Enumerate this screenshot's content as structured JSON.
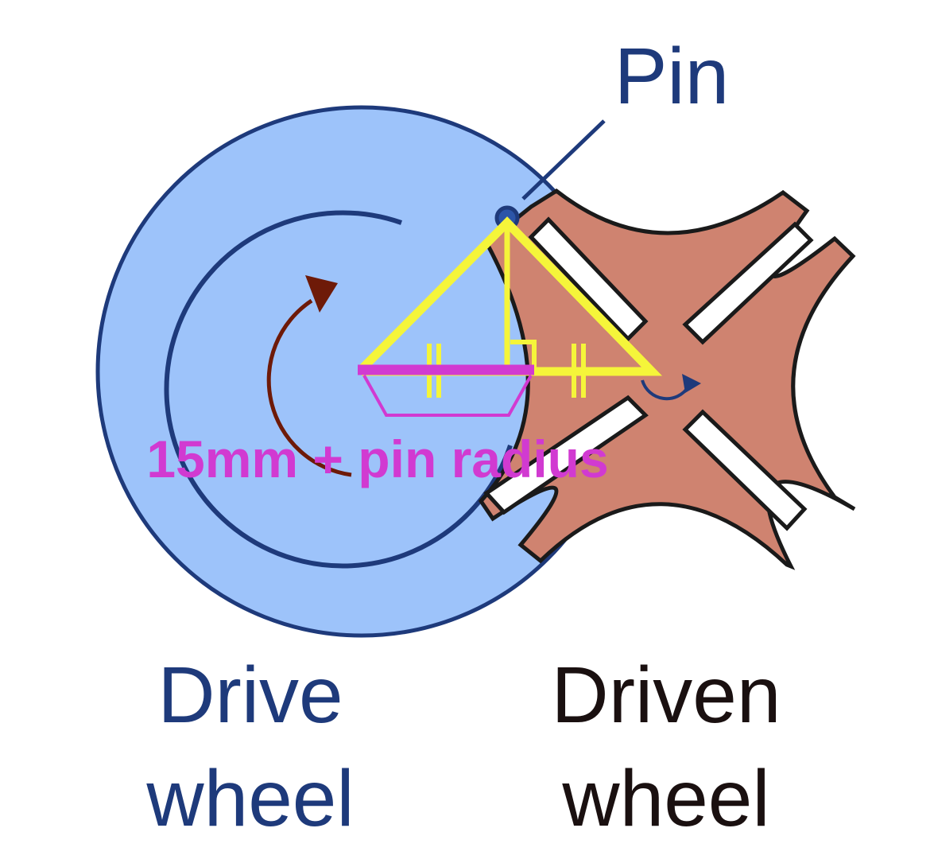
{
  "labels": {
    "pin": "Pin",
    "dimension": "15mm + pin radius",
    "drive_line1": "Drive",
    "drive_line2": "wheel",
    "driven_line1": "Driven",
    "driven_line2": "wheel"
  },
  "colors": {
    "drive_fill": "#9dc3fa",
    "drive_stroke": "#1e3a7b",
    "driven_fill": "#cf8370",
    "driven_stroke": "#1a1a1a",
    "rotation_arrow": "#6e1a08",
    "construction": "#f5f53a",
    "dimension": "#d13ad1",
    "driven_text": "#1a1010"
  }
}
